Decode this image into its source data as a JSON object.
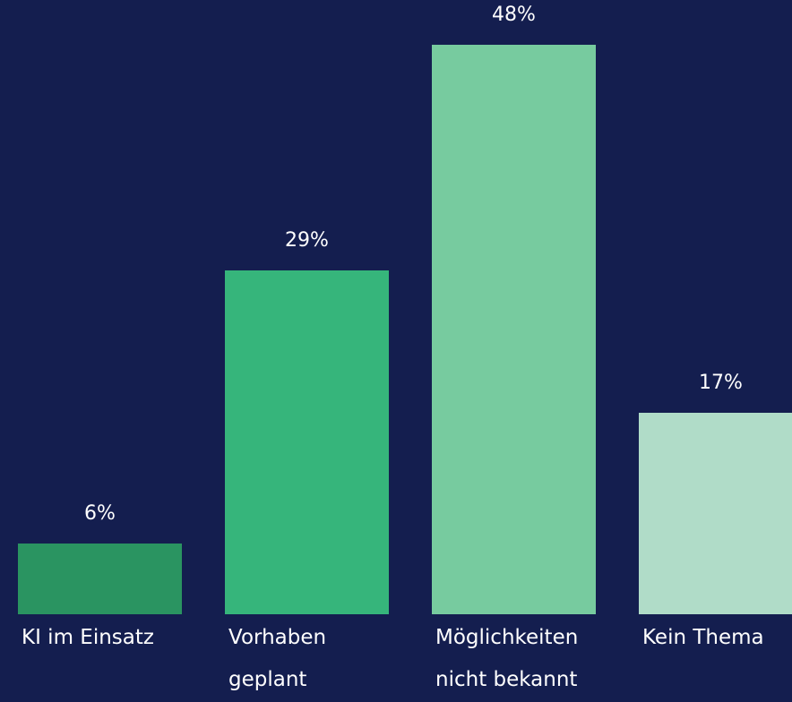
{
  "chart_data": {
    "type": "bar",
    "categories": [
      "KI im Einsatz",
      "Vorhaben geplant",
      "Möglichkeiten nicht bekannt",
      "Kein Thema"
    ],
    "values": [
      6,
      29,
      48,
      17
    ],
    "value_labels": [
      "6%",
      "29%",
      "48%",
      "17%"
    ],
    "colors": [
      "#2a9461",
      "#36b57b",
      "#77cb9f",
      "#b0dcc8"
    ]
  }
}
